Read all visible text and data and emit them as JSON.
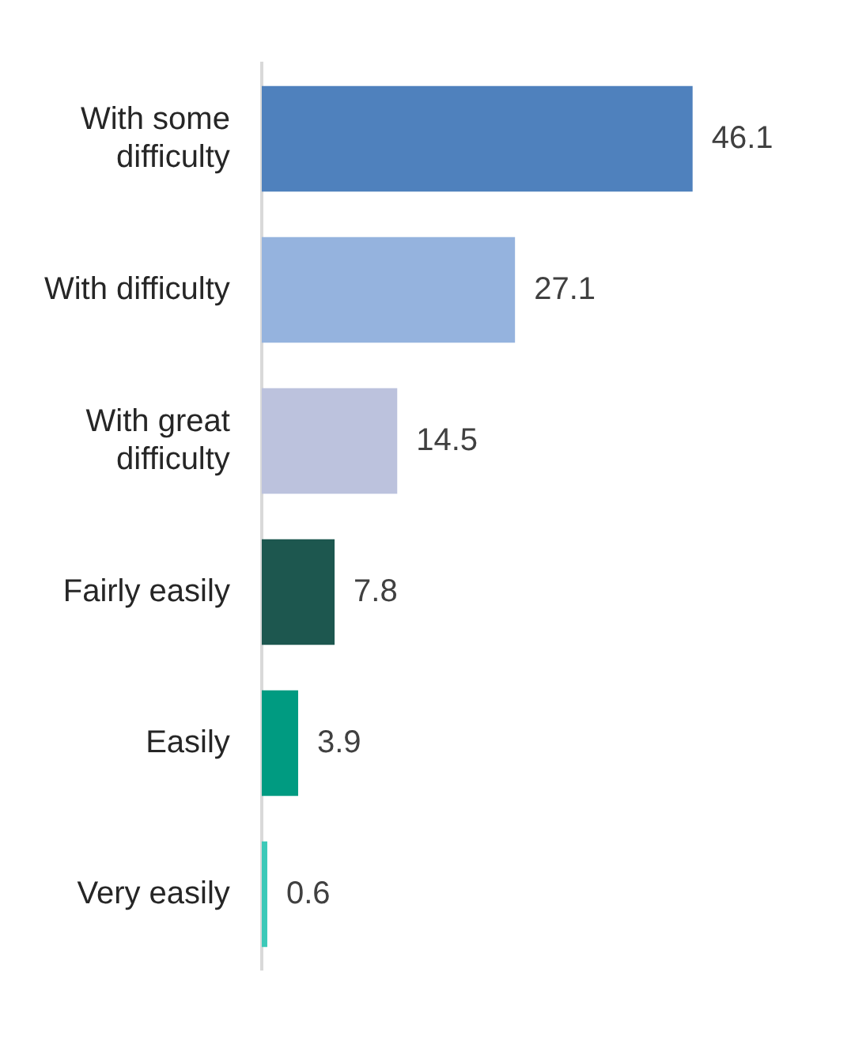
{
  "chart_data": {
    "type": "bar",
    "orientation": "horizontal",
    "categories": [
      "With some difficulty",
      "With difficulty",
      "With great difficulty",
      "Fairly easily",
      "Easily",
      "Very easily"
    ],
    "values": [
      46.1,
      27.1,
      14.5,
      7.8,
      3.9,
      0.6
    ],
    "colors": [
      "#4f81bd",
      "#95b3de",
      "#bcc2dd",
      "#1d574f",
      "#009b81",
      "#3cc9b8"
    ],
    "data_labels": true,
    "legend": false
  }
}
